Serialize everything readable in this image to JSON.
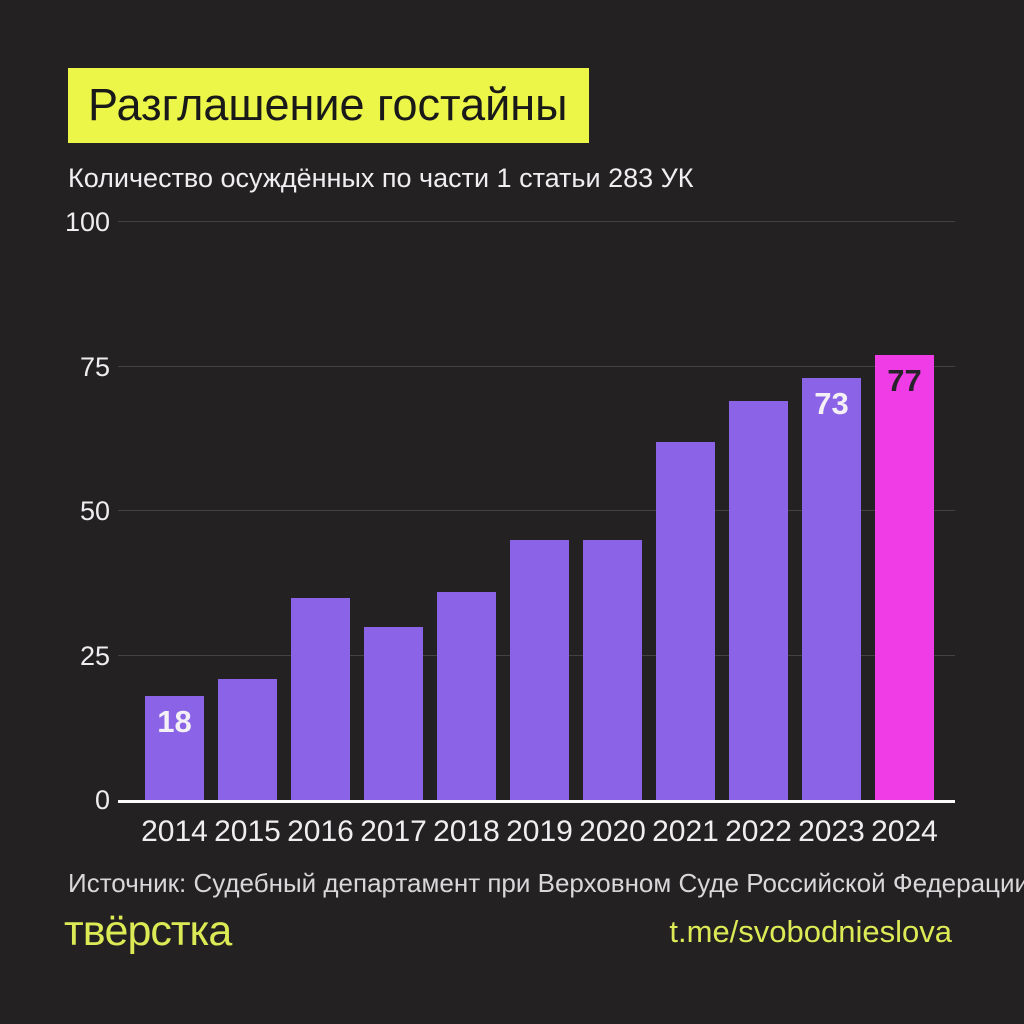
{
  "header": {
    "title": "Разглашение гостайны",
    "subtitle": "Количество осуждённых по части 1 статьи 283 УК"
  },
  "chart_data": {
    "type": "bar",
    "title": "Разглашение гостайны",
    "subtitle": "Количество осуждённых по части 1 статьи 283 УК",
    "categories": [
      "2014",
      "2015",
      "2016",
      "2017",
      "2018",
      "2019",
      "2020",
      "2021",
      "2022",
      "2023",
      "2024"
    ],
    "values": [
      18,
      21,
      35,
      30,
      36,
      45,
      45,
      62,
      69,
      73,
      77
    ],
    "value_labels": {
      "2014": "18",
      "2023": "73",
      "2024": "77"
    },
    "xlabel": "",
    "ylabel": "",
    "ylim": [
      0,
      100
    ],
    "yticks": [
      0,
      25,
      50,
      75,
      100
    ],
    "grid": "horizontal",
    "legend": "none",
    "bar_color": "#8a63e6",
    "highlight_year": "2024",
    "highlight_color": "#ef3ce6",
    "value_label_color": "#f3f0f6",
    "highlight_value_label_color": "#28222b"
  },
  "footer": {
    "source": "Источник: Судебный департамент при Верховном Суде Российской Федерации",
    "logo": "твёрстка",
    "telegram": "t.me/svobodnieslova"
  },
  "colors": {
    "background": "#242122",
    "accent_yellow": "#ecf649",
    "footer_yellow": "#dcea55",
    "text": "#f2f0f3"
  }
}
